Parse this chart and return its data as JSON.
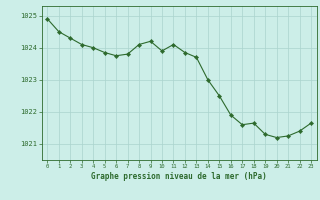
{
  "x": [
    0,
    1,
    2,
    3,
    4,
    5,
    6,
    7,
    8,
    9,
    10,
    11,
    12,
    13,
    14,
    15,
    16,
    17,
    18,
    19,
    20,
    21,
    22,
    23
  ],
  "y": [
    1024.9,
    1024.5,
    1024.3,
    1024.1,
    1024.0,
    1023.85,
    1023.75,
    1023.8,
    1024.1,
    1024.2,
    1023.9,
    1024.1,
    1023.85,
    1023.7,
    1023.0,
    1022.5,
    1021.9,
    1021.6,
    1021.65,
    1021.3,
    1021.2,
    1021.25,
    1021.4,
    1021.65
  ],
  "line_color": "#2d6a2d",
  "marker_color": "#2d6a2d",
  "bg_color": "#cceee8",
  "grid_color": "#aad4ce",
  "axis_color": "#2d6a2d",
  "xlabel": "Graphe pression niveau de la mer (hPa)",
  "xlabel_color": "#2d6a2d",
  "ylim_min": 1020.5,
  "ylim_max": 1025.3,
  "yticks": [
    1021,
    1022,
    1023,
    1024,
    1025
  ],
  "xticks": [
    0,
    1,
    2,
    3,
    4,
    5,
    6,
    7,
    8,
    9,
    10,
    11,
    12,
    13,
    14,
    15,
    16,
    17,
    18,
    19,
    20,
    21,
    22,
    23
  ]
}
